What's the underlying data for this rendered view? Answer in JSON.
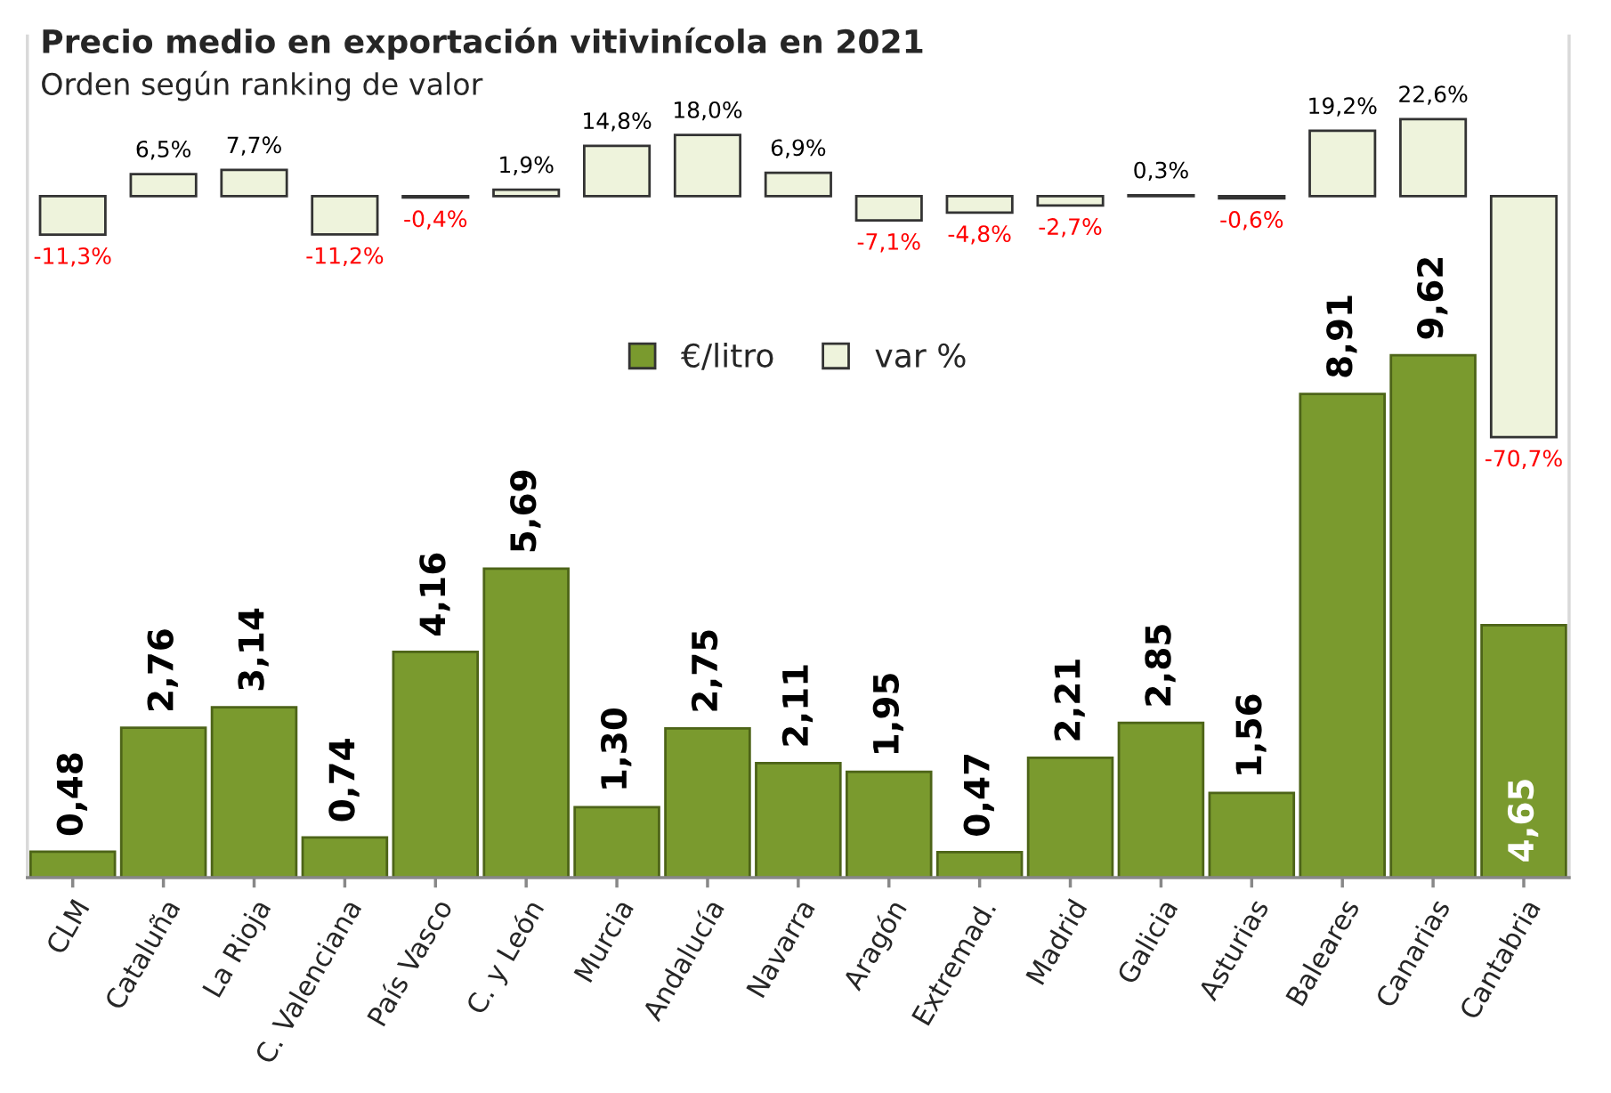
{
  "chart_data": {
    "type": "bar",
    "title": "Precio medio en exportación vitivinícola en 2021",
    "subtitle": "Orden según ranking de valor",
    "categories": [
      "CLM",
      "Cataluña",
      "La Rioja",
      "C. Valenciana",
      "País Vasco",
      "C. y León",
      "Murcia",
      "Andalucía",
      "Navarra",
      "Aragón",
      "Extremad.",
      "Madrid",
      "Galicia",
      "Asturias",
      "Baleares",
      "Canarias",
      "Cantabria"
    ],
    "series": [
      {
        "name": "€/litro",
        "color": "#7a9a2e",
        "values": [
          0.48,
          2.76,
          3.14,
          0.74,
          4.16,
          5.69,
          1.3,
          2.75,
          2.11,
          1.95,
          0.47,
          2.21,
          2.85,
          1.56,
          8.91,
          9.62,
          4.65
        ],
        "value_labels": [
          "0,48",
          "2,76",
          "3,14",
          "0,74",
          "4,16",
          "5,69",
          "1,30",
          "2,75",
          "2,11",
          "1,95",
          "0,47",
          "2,21",
          "2,85",
          "1,56",
          "8,91",
          "9,62",
          "4,65"
        ]
      },
      {
        "name": "var %",
        "color": "#eef3dc",
        "axis": "y2",
        "values": [
          -11.3,
          6.5,
          7.7,
          -11.2,
          -0.4,
          1.9,
          14.8,
          18.0,
          6.9,
          -7.1,
          -4.8,
          -2.7,
          0.3,
          -0.6,
          19.2,
          22.6,
          -70.7
        ],
        "value_labels": [
          "-11,3%",
          "6,5%",
          "7,7%",
          "-11,2%",
          "-0,4%",
          "1,9%",
          "14,8%",
          "18,0%",
          "6,9%",
          "-7,1%",
          "-4,8%",
          "-2,7%",
          "0,3%",
          "-0,6%",
          "19,2%",
          "22,6%",
          "-70,7%"
        ]
      }
    ],
    "ylim": [
      0,
      15.5
    ],
    "y2lim": [
      -200,
      47
    ],
    "tick_labels": "x",
    "grid": false,
    "legend": "top"
  }
}
